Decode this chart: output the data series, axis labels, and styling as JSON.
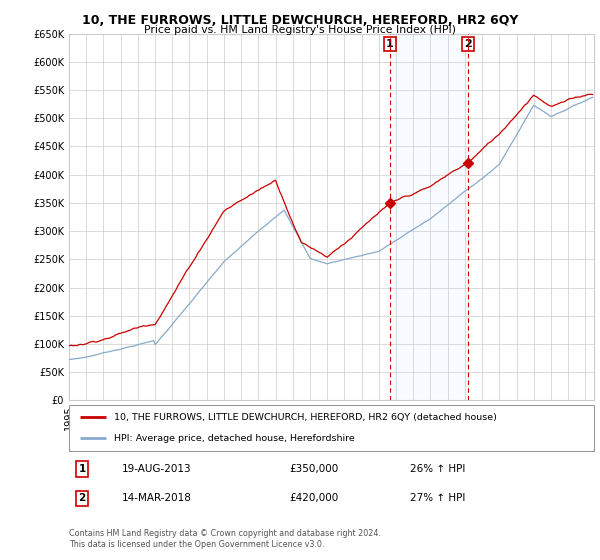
{
  "title": "10, THE FURROWS, LITTLE DEWCHURCH, HEREFORD, HR2 6QY",
  "subtitle": "Price paid vs. HM Land Registry's House Price Index (HPI)",
  "legend_line1": "10, THE FURROWS, LITTLE DEWCHURCH, HEREFORD, HR2 6QY (detached house)",
  "legend_line2": "HPI: Average price, detached house, Herefordshire",
  "annotation1_label": "1",
  "annotation1_date": "19-AUG-2013",
  "annotation1_price": "£350,000",
  "annotation1_hpi": "26% ↑ HPI",
  "annotation2_label": "2",
  "annotation2_date": "14-MAR-2018",
  "annotation2_price": "£420,000",
  "annotation2_hpi": "27% ↑ HPI",
  "footer": "Contains HM Land Registry data © Crown copyright and database right 2024.\nThis data is licensed under the Open Government Licence v3.0.",
  "sale1_year": 2013.63,
  "sale1_value": 350000,
  "sale2_year": 2018.2,
  "sale2_value": 420000,
  "red_color": "#cc0000",
  "blue_color": "#88aacc",
  "shade_color": "#ddeeff",
  "background_color": "#ffffff",
  "grid_color": "#cccccc",
  "ylim_min": 0,
  "ylim_max": 650000,
  "ytick_step": 50000,
  "xmin": 1995,
  "xmax": 2025.5
}
